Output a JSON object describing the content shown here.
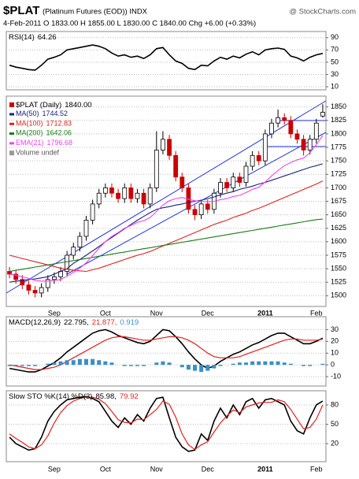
{
  "header": {
    "symbol": "$PLAT",
    "name": "(Platinum Futures (EOD)) INDX",
    "site": "@ StockCharts.com",
    "quote": "4-Feb-2011  O 1833.00 H 1855.00 L 1830.00 C 1840.00 Chg +6.00 (+0.33%)"
  },
  "chart_data": [
    {
      "type": "line",
      "title": "RSI(14)",
      "ylim": [
        5,
        100
      ],
      "yticks": [
        10,
        30,
        50,
        70,
        90
      ],
      "grid": true,
      "series": [
        {
          "name": "RSI(14)",
          "color": "#000000",
          "values": [
            45,
            42,
            40,
            38,
            37,
            45,
            55,
            58,
            62,
            70,
            72,
            74,
            76,
            78,
            76,
            72,
            65,
            60,
            62,
            58,
            60,
            56,
            62,
            72,
            74,
            62,
            52,
            48,
            40,
            38,
            45,
            44,
            52,
            58,
            55,
            60,
            57,
            63,
            67,
            62,
            70,
            72,
            73,
            71,
            60,
            57,
            52,
            58,
            62,
            64.26
          ]
        }
      ]
    },
    {
      "type": "candlestick",
      "name": "$PLAT (Daily)",
      "close_label": "1840.00",
      "volume_label": "Volume undef",
      "up_color": "#000000",
      "down_color": "#cc0000",
      "ylim": [
        1480,
        1870
      ],
      "yticks": [
        1500,
        1525,
        1550,
        1575,
        1600,
        1625,
        1650,
        1675,
        1700,
        1725,
        1750,
        1775,
        1800,
        1825,
        1850
      ],
      "grid": true,
      "categories": [
        null,
        null,
        null,
        null,
        null,
        null,
        null,
        "Sep",
        null,
        null,
        null,
        null,
        null,
        null,
        null,
        "Oct",
        null,
        null,
        null,
        null,
        null,
        null,
        null,
        "Nov",
        null,
        null,
        null,
        null,
        null,
        null,
        null,
        "Dec",
        null,
        null,
        null,
        null,
        null,
        null,
        null,
        null,
        "2011",
        null,
        null,
        null,
        null,
        null,
        null,
        null,
        "Feb",
        null
      ],
      "open": [
        1545,
        1540,
        1530,
        1520,
        1510,
        1505,
        1515,
        1530,
        1535,
        1545,
        1575,
        1590,
        1610,
        1640,
        1670,
        1690,
        1700,
        1690,
        1680,
        1700,
        1680,
        1690,
        1670,
        1700,
        1770,
        1790,
        1760,
        1720,
        1700,
        1660,
        1650,
        1670,
        1660,
        1690,
        1710,
        1700,
        1720,
        1710,
        1740,
        1760,
        1750,
        1800,
        1820,
        1830,
        1825,
        1800,
        1790,
        1770,
        1790,
        1833
      ],
      "high": [
        1553,
        1548,
        1538,
        1528,
        1518,
        1523,
        1538,
        1543,
        1553,
        1583,
        1598,
        1618,
        1648,
        1678,
        1698,
        1708,
        1708,
        1698,
        1708,
        1708,
        1698,
        1698,
        1708,
        1805,
        1805,
        1798,
        1768,
        1728,
        1708,
        1668,
        1678,
        1678,
        1698,
        1718,
        1718,
        1728,
        1728,
        1748,
        1768,
        1768,
        1808,
        1828,
        1845,
        1838,
        1833,
        1808,
        1798,
        1798,
        1828,
        1855
      ],
      "low": [
        1532,
        1522,
        1512,
        1502,
        1497,
        1497,
        1507,
        1522,
        1527,
        1537,
        1567,
        1582,
        1602,
        1632,
        1662,
        1682,
        1682,
        1672,
        1672,
        1672,
        1672,
        1662,
        1662,
        1692,
        1762,
        1752,
        1712,
        1692,
        1652,
        1640,
        1642,
        1652,
        1652,
        1682,
        1692,
        1692,
        1702,
        1702,
        1732,
        1742,
        1742,
        1792,
        1812,
        1817,
        1792,
        1782,
        1760,
        1762,
        1782,
        1830
      ],
      "close": [
        1540,
        1530,
        1520,
        1510,
        1505,
        1515,
        1530,
        1535,
        1545,
        1575,
        1590,
        1610,
        1640,
        1670,
        1690,
        1700,
        1690,
        1680,
        1700,
        1680,
        1690,
        1670,
        1700,
        1770,
        1790,
        1760,
        1720,
        1700,
        1660,
        1650,
        1670,
        1660,
        1690,
        1710,
        1700,
        1720,
        1710,
        1740,
        1760,
        1750,
        1800,
        1820,
        1830,
        1825,
        1800,
        1790,
        1770,
        1790,
        1820,
        1840
      ],
      "series": [
        {
          "name": "MA(50)",
          "color": "#1a237e",
          "values": [
            1525,
            1527,
            1528,
            1530,
            1531,
            1533,
            1535,
            1540,
            1545,
            1550,
            1560,
            1567,
            1575,
            1583,
            1591,
            1600,
            1608,
            1616,
            1624,
            1632,
            1640,
            1647,
            1654,
            1660,
            1663,
            1665,
            1668,
            1670,
            1673,
            1675,
            1677,
            1680,
            1683,
            1687,
            1690,
            1693,
            1697,
            1700,
            1703,
            1707,
            1710,
            1714,
            1718,
            1722,
            1726,
            1730,
            1734,
            1738,
            1741,
            1744.52
          ]
        },
        {
          "name": "MA(100)",
          "color": "#e02020",
          "values": [
            1575,
            1572,
            1569,
            1566,
            1563,
            1560,
            1557,
            1554,
            1551,
            1549,
            1547,
            1546,
            1545,
            1548,
            1551,
            1555,
            1559,
            1563,
            1567,
            1571,
            1575,
            1578,
            1582,
            1587,
            1592,
            1597,
            1602,
            1607,
            1612,
            1617,
            1622,
            1627,
            1632,
            1636,
            1640,
            1645,
            1649,
            1653,
            1658,
            1662,
            1667,
            1672,
            1677,
            1682,
            1687,
            1692,
            1697,
            1702,
            1707,
            1712.83
          ]
        },
        {
          "name": "MA(200)",
          "color": "#1b7a1b",
          "values": [
            1545,
            1547,
            1549,
            1551,
            1553,
            1555,
            1557,
            1559,
            1561,
            1563,
            1565,
            1567,
            1569,
            1571,
            1573,
            1575,
            1577,
            1579,
            1581,
            1583,
            1585,
            1587,
            1589,
            1591,
            1593,
            1595,
            1597,
            1599,
            1601,
            1603,
            1605,
            1607,
            1609,
            1611,
            1613,
            1615,
            1617,
            1619,
            1621,
            1623,
            1625,
            1627,
            1629,
            1631,
            1633,
            1635,
            1637,
            1639,
            1641,
            1642.06
          ]
        },
        {
          "name": "EMA(21)",
          "color": "#ee44ee",
          "values": [
            1540,
            1538,
            1535,
            1532,
            1528,
            1527,
            1527,
            1528,
            1530,
            1536,
            1543,
            1551,
            1561,
            1574,
            1588,
            1600,
            1610,
            1617,
            1625,
            1630,
            1636,
            1639,
            1645,
            1656,
            1668,
            1676,
            1680,
            1682,
            1679,
            1676,
            1675,
            1674,
            1675,
            1678,
            1680,
            1684,
            1686,
            1691,
            1697,
            1701,
            1711,
            1722,
            1732,
            1741,
            1747,
            1752,
            1755,
            1765,
            1780,
            1796.68
          ]
        }
      ]
    },
    {
      "type": "line",
      "title_parts": [
        "MACD(12,26,9)",
        "22.795,",
        "21.877,",
        "0.919"
      ],
      "ylim": [
        -18,
        41
      ],
      "yticks": [
        -10,
        0,
        10,
        20,
        30
      ],
      "grid": true,
      "series": [
        {
          "name": "MACD",
          "color": "#000000",
          "values": [
            -3,
            -4,
            -5,
            -6,
            -6,
            -4,
            -1,
            2,
            6,
            11,
            15,
            19,
            23,
            27,
            29,
            30,
            28,
            25,
            23,
            21,
            19,
            18,
            20,
            25,
            30,
            29,
            24,
            18,
            11,
            5,
            0,
            -3,
            -1,
            3,
            6,
            9,
            11,
            14,
            17,
            19,
            22,
            25,
            27,
            27,
            24,
            21,
            18,
            18,
            20,
            22.795
          ]
        },
        {
          "name": "Signal",
          "color": "#e02020",
          "values": [
            0,
            -1,
            -2,
            -3,
            -4,
            -4,
            -3,
            -2,
            0,
            3,
            6,
            9,
            12,
            15,
            18,
            21,
            23,
            24,
            24,
            23,
            22,
            21,
            21,
            22,
            23,
            24,
            24,
            23,
            21,
            18,
            14,
            10,
            7,
            6,
            6,
            6,
            7,
            9,
            11,
            13,
            15,
            17,
            19,
            21,
            22,
            22,
            21,
            21,
            21,
            21.877
          ]
        },
        {
          "name": "Histogram",
          "kind": "histogram",
          "color": "#3a8fc8",
          "values": [
            -1,
            -1,
            -1,
            -1,
            -1,
            0,
            1,
            2,
            3,
            4,
            4,
            5,
            5,
            5,
            4,
            3,
            2,
            0,
            -1,
            -1,
            -1,
            -1,
            0,
            2,
            3,
            2,
            0,
            -2,
            -4,
            -5,
            -6,
            -5,
            -3,
            -1,
            0,
            1,
            2,
            2,
            3,
            3,
            3,
            3,
            3,
            2,
            1,
            0,
            -1,
            -1,
            0,
            0.919
          ]
        }
      ]
    },
    {
      "type": "line",
      "title_parts": [
        "Slow STO %K(14) %D(3)",
        "85.98,",
        "79.92"
      ],
      "ylim": [
        -8,
        102
      ],
      "yticks": [
        20,
        50,
        80
      ],
      "grid": true,
      "series": [
        {
          "name": "%K",
          "color": "#000000",
          "values": [
            30,
            20,
            15,
            10,
            12,
            30,
            55,
            70,
            80,
            88,
            90,
            92,
            93,
            90,
            85,
            70,
            55,
            45,
            60,
            50,
            65,
            55,
            75,
            90,
            92,
            60,
            30,
            15,
            8,
            10,
            35,
            25,
            55,
            75,
            60,
            80,
            65,
            85,
            90,
            75,
            88,
            90,
            85,
            80,
            55,
            40,
            35,
            60,
            80,
            85.98
          ]
        },
        {
          "name": "%D",
          "color": "#e02020",
          "values": [
            35,
            28,
            22,
            15,
            12,
            18,
            32,
            52,
            68,
            79,
            86,
            90,
            92,
            92,
            89,
            82,
            70,
            57,
            53,
            52,
            58,
            57,
            65,
            73,
            86,
            81,
            61,
            35,
            18,
            11,
            18,
            23,
            38,
            52,
            63,
            72,
            68,
            77,
            80,
            83,
            84,
            84,
            88,
            85,
            73,
            58,
            43,
            45,
            58,
            79.92
          ]
        }
      ]
    }
  ]
}
